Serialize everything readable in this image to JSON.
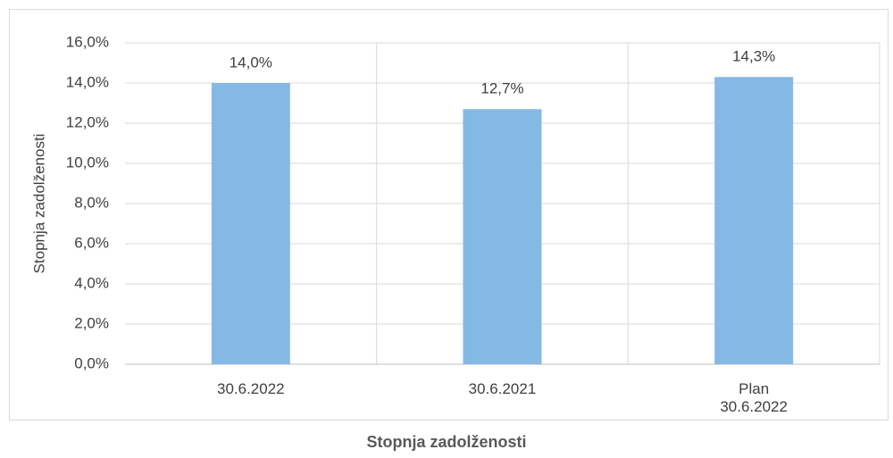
{
  "chart_data": {
    "type": "bar",
    "title": "Stopnja zadolženosti",
    "y_label": "Stopnja zadolženosti",
    "categories": [
      "30.6.2022",
      "30.6.2021",
      "Plan\n30.6.2022"
    ],
    "values": [
      14.0,
      12.7,
      14.3
    ],
    "value_labels": [
      "14,0%",
      "12,7%",
      "14,3%"
    ],
    "color": "#85b9e5",
    "ylim": [
      0,
      16
    ],
    "yticks": [
      {
        "value": 0,
        "label": "0,0%"
      },
      {
        "value": 2,
        "label": "2,0%"
      },
      {
        "value": 4,
        "label": "4,0%"
      },
      {
        "value": 6,
        "label": "6,0%"
      },
      {
        "value": 8,
        "label": "8,0%"
      },
      {
        "value": 10,
        "label": "10,0%"
      },
      {
        "value": 12,
        "label": "12,0%"
      },
      {
        "value": 14,
        "label": "14,0%"
      },
      {
        "value": 16,
        "label": "16,0%"
      }
    ],
    "grid": true
  }
}
